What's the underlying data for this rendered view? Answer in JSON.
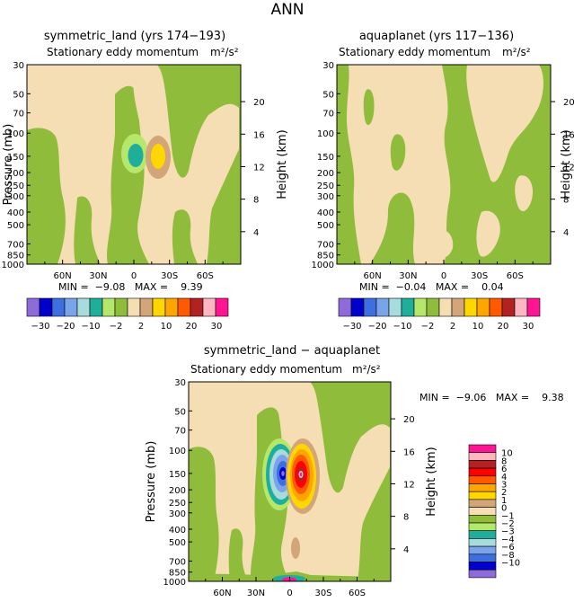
{
  "figure": {
    "title": "ANN"
  },
  "palette": {
    "tan": "#f5deb3",
    "green": "#8fbc3a",
    "white": "#ffffff",
    "c_m10": "#8e6bd8",
    "c_m8": "#0000cd",
    "c_m6": "#3d6fe0",
    "c_m4": "#7aa4ea",
    "c_m3": "#a8dcdc",
    "c_m2": "#1fae9b",
    "c_m1": "#b5e76a",
    "c_0": "#8fbc3a",
    "c_1": "#f5deb3",
    "c_2": "#d2a679",
    "c_3": "#ffd700",
    "c_4": "#ffa500",
    "c_6": "#ff5a00",
    "c_8": "#b22222",
    "c_10": "#ff1493",
    "c_pink": "#ffb6c1",
    "c_red": "#ff0000"
  },
  "chart_data": [
    {
      "type": "contour",
      "title": "symmetric_land (yrs 174−193)",
      "subtitle": "Stationary eddy momentum",
      "units": "m²/s²",
      "ylabel": "Pressure (mb)",
      "ylabel_right": "Height (km)",
      "x_ticks": [
        "60N",
        "30N",
        "0",
        "30S",
        "60S"
      ],
      "x_tick_values": [
        60,
        30,
        0,
        -30,
        -60
      ],
      "xlim": [
        90,
        -90
      ],
      "y_ticks": [
        "30",
        "50",
        "70",
        "100",
        "150",
        "200",
        "250",
        "300",
        "400",
        "500",
        "700",
        "850",
        "1000"
      ],
      "y_tick_values": [
        30,
        50,
        70,
        100,
        150,
        200,
        250,
        300,
        400,
        500,
        700,
        850,
        1000
      ],
      "ylim": [
        30,
        1000
      ],
      "height_ticks": [
        "4",
        "8",
        "12",
        "16",
        "20"
      ],
      "height_tick_values": [
        4,
        8,
        12,
        16,
        20
      ],
      "min_max": "MIN =  −9.08   MAX =    9.39",
      "min": -9.08,
      "max": 9.39,
      "colorbar_labels": [
        "−30",
        "−20",
        "−10",
        "−2",
        "2",
        "10",
        "20",
        "30"
      ],
      "colorbar_values": [
        -30,
        -20,
        -10,
        -2,
        2,
        10,
        20,
        30
      ]
    },
    {
      "type": "contour",
      "title": "aquaplanet (yrs 117−136)",
      "subtitle": "Stationary eddy momentum",
      "units": "m²/s²",
      "ylabel_right": "Height (km)",
      "x_ticks": [
        "60N",
        "30N",
        "0",
        "30S",
        "60S"
      ],
      "x_tick_values": [
        60,
        30,
        0,
        -30,
        -60
      ],
      "y_ticks": [
        "30",
        "50",
        "70",
        "100",
        "150",
        "200",
        "250",
        "300",
        "400",
        "500",
        "700",
        "850",
        "1000"
      ],
      "height_ticks": [
        "4",
        "8",
        "12",
        "16",
        "20"
      ],
      "min_max": "MIN =  −0.04   MAX =    0.04",
      "min": -0.04,
      "max": 0.04,
      "colorbar_labels": [
        "−30",
        "−20",
        "−10",
        "−2",
        "2",
        "10",
        "20",
        "30"
      ]
    },
    {
      "type": "contour",
      "title": "symmetric_land − aquaplanet",
      "subtitle": "Stationary eddy momentum",
      "units": "m²/s²",
      "ylabel": "Pressure (mb)",
      "ylabel_right": "Height (km)",
      "x_ticks": [
        "60N",
        "30N",
        "0",
        "30S",
        "60S"
      ],
      "y_ticks": [
        "30",
        "50",
        "70",
        "100",
        "150",
        "200",
        "250",
        "300",
        "400",
        "500",
        "700",
        "850",
        "1000"
      ],
      "height_ticks": [
        "4",
        "8",
        "12",
        "16",
        "20"
      ],
      "min_max": "MIN =  −9.06   MAX =    9.38",
      "min": -9.06,
      "max": 9.38,
      "colorbar_labels": [
        "10",
        "8",
        "6",
        "4",
        "3",
        "2",
        "1",
        "0",
        "−1",
        "−2",
        "−3",
        "−4",
        "−6",
        "−8",
        "−10"
      ],
      "colorbar_values": [
        10,
        8,
        6,
        4,
        3,
        2,
        1,
        0,
        -1,
        -2,
        -3,
        -4,
        -6,
        -8,
        -10
      ]
    }
  ]
}
